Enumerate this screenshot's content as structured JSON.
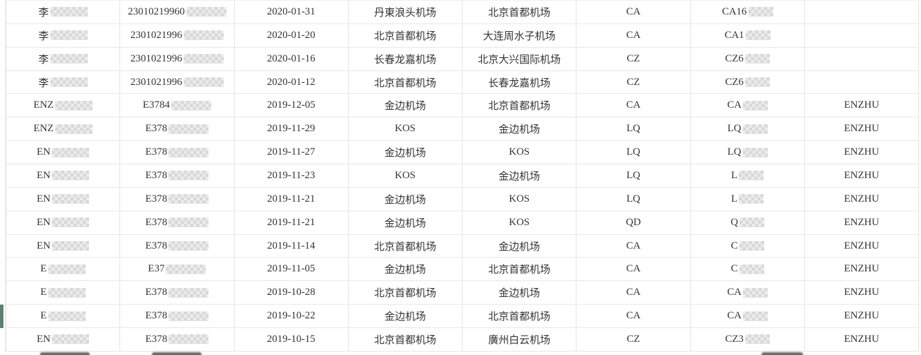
{
  "table": {
    "description": "flight-record-list",
    "columns": [
      "name",
      "id_number",
      "flight_date",
      "departure_airport",
      "arrival_airport",
      "airline_code",
      "flight_number",
      "passenger_tag"
    ],
    "redaction_style": "pixelated-mosaic",
    "rows": [
      {
        "name": "李",
        "id": "23010219960",
        "date": "2020-01-31",
        "from": "丹東浪头机场",
        "to": "北京首都机场",
        "airline": "CA",
        "flight": "CA16",
        "tag": ""
      },
      {
        "name": "李",
        "id": "2301021996",
        "date": "2020-01-20",
        "from": "北京首都机场",
        "to": "大连周水子机场",
        "airline": "CA",
        "flight": "CA1",
        "tag": ""
      },
      {
        "name": "李",
        "id": "2301021996",
        "date": "2020-01-16",
        "from": "长春龙嘉机场",
        "to": "北京大兴国际机场",
        "airline": "CZ",
        "flight": "CZ6",
        "tag": ""
      },
      {
        "name": "李",
        "id": "2301021996",
        "date": "2020-01-12",
        "from": "北京首都机场",
        "to": "长春龙嘉机场",
        "airline": "CZ",
        "flight": "CZ6",
        "tag": ""
      },
      {
        "name": "ENZ",
        "id": "E3784",
        "date": "2019-12-05",
        "from": "金边机场",
        "to": "北京首都机场",
        "airline": "CA",
        "flight": "CA",
        "tag": "ENZHU"
      },
      {
        "name": "ENZ",
        "id": "E378",
        "date": "2019-11-29",
        "from": "KOS",
        "to": "金边机场",
        "airline": "LQ",
        "flight": "LQ",
        "tag": "ENZHU"
      },
      {
        "name": "EN",
        "id": "E378",
        "date": "2019-11-27",
        "from": "金边机场",
        "to": "KOS",
        "airline": "LQ",
        "flight": "LQ",
        "tag": "ENZHU"
      },
      {
        "name": "EN",
        "id": "E378",
        "date": "2019-11-23",
        "from": "KOS",
        "to": "金边机场",
        "airline": "LQ",
        "flight": "L",
        "tag": "ENZHU"
      },
      {
        "name": "EN",
        "id": "E378",
        "date": "2019-11-21",
        "from": "金边机场",
        "to": "KOS",
        "airline": "LQ",
        "flight": "L",
        "tag": "ENZHU"
      },
      {
        "name": "EN",
        "id": "E378",
        "date": "2019-11-21",
        "from": "金边机场",
        "to": "KOS",
        "airline": "QD",
        "flight": "Q",
        "tag": "ENZHU"
      },
      {
        "name": "EN",
        "id": "E378",
        "date": "2019-11-14",
        "from": "北京首都机场",
        "to": "金边机场",
        "airline": "CA",
        "flight": "C",
        "tag": "ENZHU"
      },
      {
        "name": "E",
        "id": "E37",
        "date": "2019-11-05",
        "from": "金边机场",
        "to": "北京首都机场",
        "airline": "CA",
        "flight": "C",
        "tag": "ENZHU"
      },
      {
        "name": "E",
        "id": "E378",
        "date": "2019-10-28",
        "from": "北京首都机场",
        "to": "金边机场",
        "airline": "CA",
        "flight": "CA",
        "tag": "ENZHU"
      },
      {
        "name": "E",
        "id": "E378",
        "date": "2019-10-22",
        "from": "金边机场",
        "to": "北京首都机场",
        "airline": "CA",
        "flight": "CA",
        "tag": "ENZHU"
      },
      {
        "name": "EN",
        "id": "E378",
        "date": "2019-10-15",
        "from": "北京首都机场",
        "to": "廣州白云机场",
        "airline": "CZ",
        "flight": "CZ3",
        "tag": "ENZHU"
      }
    ]
  },
  "selection": {
    "accent_color": "#59836c",
    "selected_row_index": 13
  },
  "colors": {
    "text": "#333333",
    "grid_line": "#e7e7e7",
    "background": "#ffffff"
  }
}
